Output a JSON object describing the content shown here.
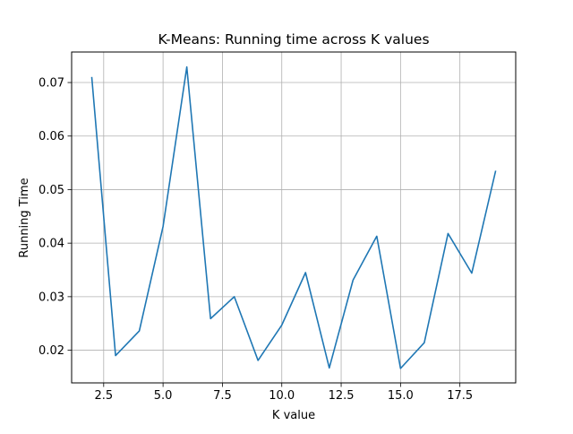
{
  "chart_data": {
    "type": "line",
    "title": "K-Means: Running time across K values",
    "xlabel": "K value",
    "ylabel": "Running Time",
    "xlim": [
      1.15,
      19.85
    ],
    "ylim": [
      0.0139,
      0.0757
    ],
    "xticks": [
      2.5,
      5.0,
      7.5,
      10.0,
      12.5,
      15.0,
      17.5
    ],
    "xtick_labels": [
      "2.5",
      "5.0",
      "7.5",
      "10.0",
      "12.5",
      "15.0",
      "17.5"
    ],
    "yticks": [
      0.02,
      0.03,
      0.04,
      0.05,
      0.06,
      0.07
    ],
    "ytick_labels": [
      "0.02",
      "0.03",
      "0.04",
      "0.05",
      "0.06",
      "0.07"
    ],
    "grid": true,
    "legend": "none",
    "line_color": "#1f77b4",
    "series": [
      {
        "x": [
          2,
          3,
          4,
          5,
          6,
          7,
          8,
          9,
          10,
          11,
          12,
          13,
          14,
          15,
          16,
          17,
          18,
          19
        ],
        "y": [
          0.0709,
          0.019,
          0.0236,
          0.0431,
          0.0729,
          0.0259,
          0.03,
          0.0181,
          0.0247,
          0.0345,
          0.0167,
          0.0331,
          0.0413,
          0.0166,
          0.0214,
          0.0418,
          0.0344,
          0.0534
        ]
      }
    ]
  }
}
